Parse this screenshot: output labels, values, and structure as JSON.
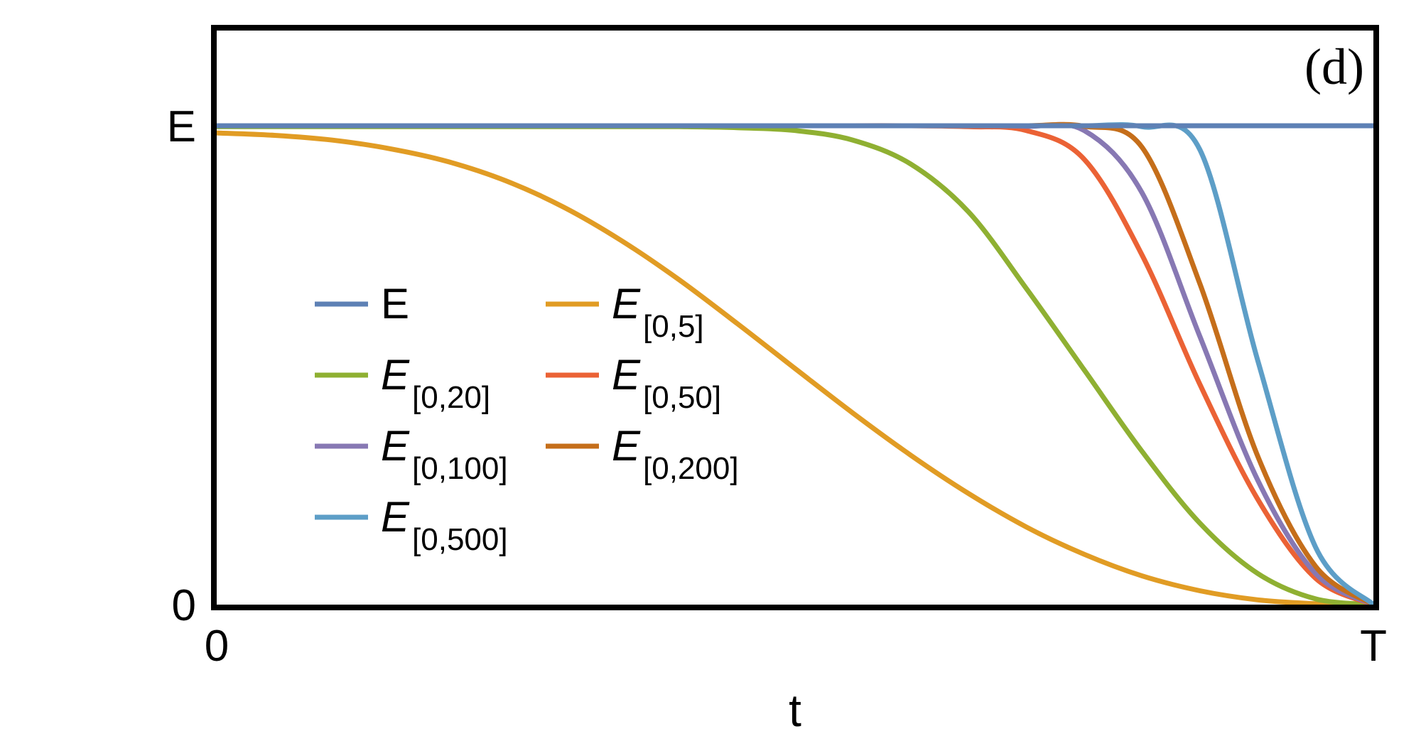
{
  "chart_data": {
    "type": "line",
    "panel_label": "(d)",
    "xlabel": "t",
    "ylabel": "",
    "x_ticks": [
      {
        "value": 0,
        "label": "0"
      },
      {
        "value": 1,
        "label": "T"
      }
    ],
    "y_ticks": [
      {
        "value": 0,
        "label": "0"
      },
      {
        "value": 1,
        "label": "E"
      }
    ],
    "xlim": [
      0,
      1
    ],
    "ylim": [
      0,
      1.2
    ],
    "grid": false,
    "legend_position": "center-left",
    "x": [
      0,
      0.05,
      0.1,
      0.15,
      0.2,
      0.25,
      0.3,
      0.35,
      0.4,
      0.45,
      0.5,
      0.55,
      0.6,
      0.65,
      0.7,
      0.75,
      0.8,
      0.85,
      0.9,
      0.95,
      1.0
    ],
    "series": [
      {
        "name": "E",
        "legend_main": "E",
        "legend_sub": "",
        "color": "#5e81b5",
        "values": [
          1,
          1,
          1,
          1,
          1,
          1,
          1,
          1,
          1,
          1,
          1,
          1,
          1,
          1,
          1,
          1,
          1,
          1,
          1,
          1,
          1
        ]
      },
      {
        "name": "E[0,5]",
        "legend_main": "E",
        "legend_sub": "[0,5]",
        "color": "#e19c24",
        "values": [
          0.985,
          0.98,
          0.97,
          0.952,
          0.925,
          0.885,
          0.83,
          0.76,
          0.678,
          0.587,
          0.493,
          0.4,
          0.312,
          0.232,
          0.162,
          0.105,
          0.06,
          0.029,
          0.01,
          0.002,
          0.0
        ]
      },
      {
        "name": "E[0,20]",
        "legend_main": "E",
        "legend_sub": "[0,20]",
        "color": "#8fb032",
        "values": [
          0.998,
          0.998,
          0.998,
          0.998,
          0.998,
          0.998,
          0.998,
          0.998,
          0.998,
          0.996,
          0.99,
          0.97,
          0.92,
          0.82,
          0.66,
          0.49,
          0.32,
          0.17,
          0.065,
          0.012,
          0.0
        ]
      },
      {
        "name": "E[0,50]",
        "legend_main": "E",
        "legend_sub": "[0,50]",
        "color": "#eb6235",
        "values": [
          1,
          1,
          1,
          1,
          1,
          1,
          1,
          1,
          1,
          1,
          1,
          1,
          1,
          0.998,
          0.99,
          0.93,
          0.73,
          0.46,
          0.22,
          0.055,
          0.0
        ]
      },
      {
        "name": "E[0,100]",
        "legend_main": "E",
        "legend_sub": "[0,100]",
        "color": "#8778b3",
        "values": [
          1,
          1,
          1,
          1,
          1,
          1,
          1,
          1,
          1,
          1,
          1,
          1,
          1,
          1,
          0.999,
          0.99,
          0.86,
          0.56,
          0.26,
          0.065,
          0.0
        ]
      },
      {
        "name": "E[0,200]",
        "legend_main": "E",
        "legend_sub": "[0,200]",
        "color": "#c56e1a",
        "values": [
          1,
          1,
          1,
          1,
          1,
          1,
          1,
          1,
          1,
          1,
          1,
          1,
          1,
          1,
          1,
          0.999,
          0.955,
          0.67,
          0.31,
          0.08,
          0.0
        ]
      },
      {
        "name": "E[0,500]",
        "legend_main": "E",
        "legend_sub": "[0,500]",
        "color": "#5d9ec7",
        "values": [
          1,
          1,
          1,
          1,
          1,
          1,
          1,
          1,
          1,
          1,
          1,
          1,
          1,
          1,
          1,
          1,
          0.998,
          0.95,
          0.51,
          0.12,
          0.0
        ]
      }
    ]
  }
}
